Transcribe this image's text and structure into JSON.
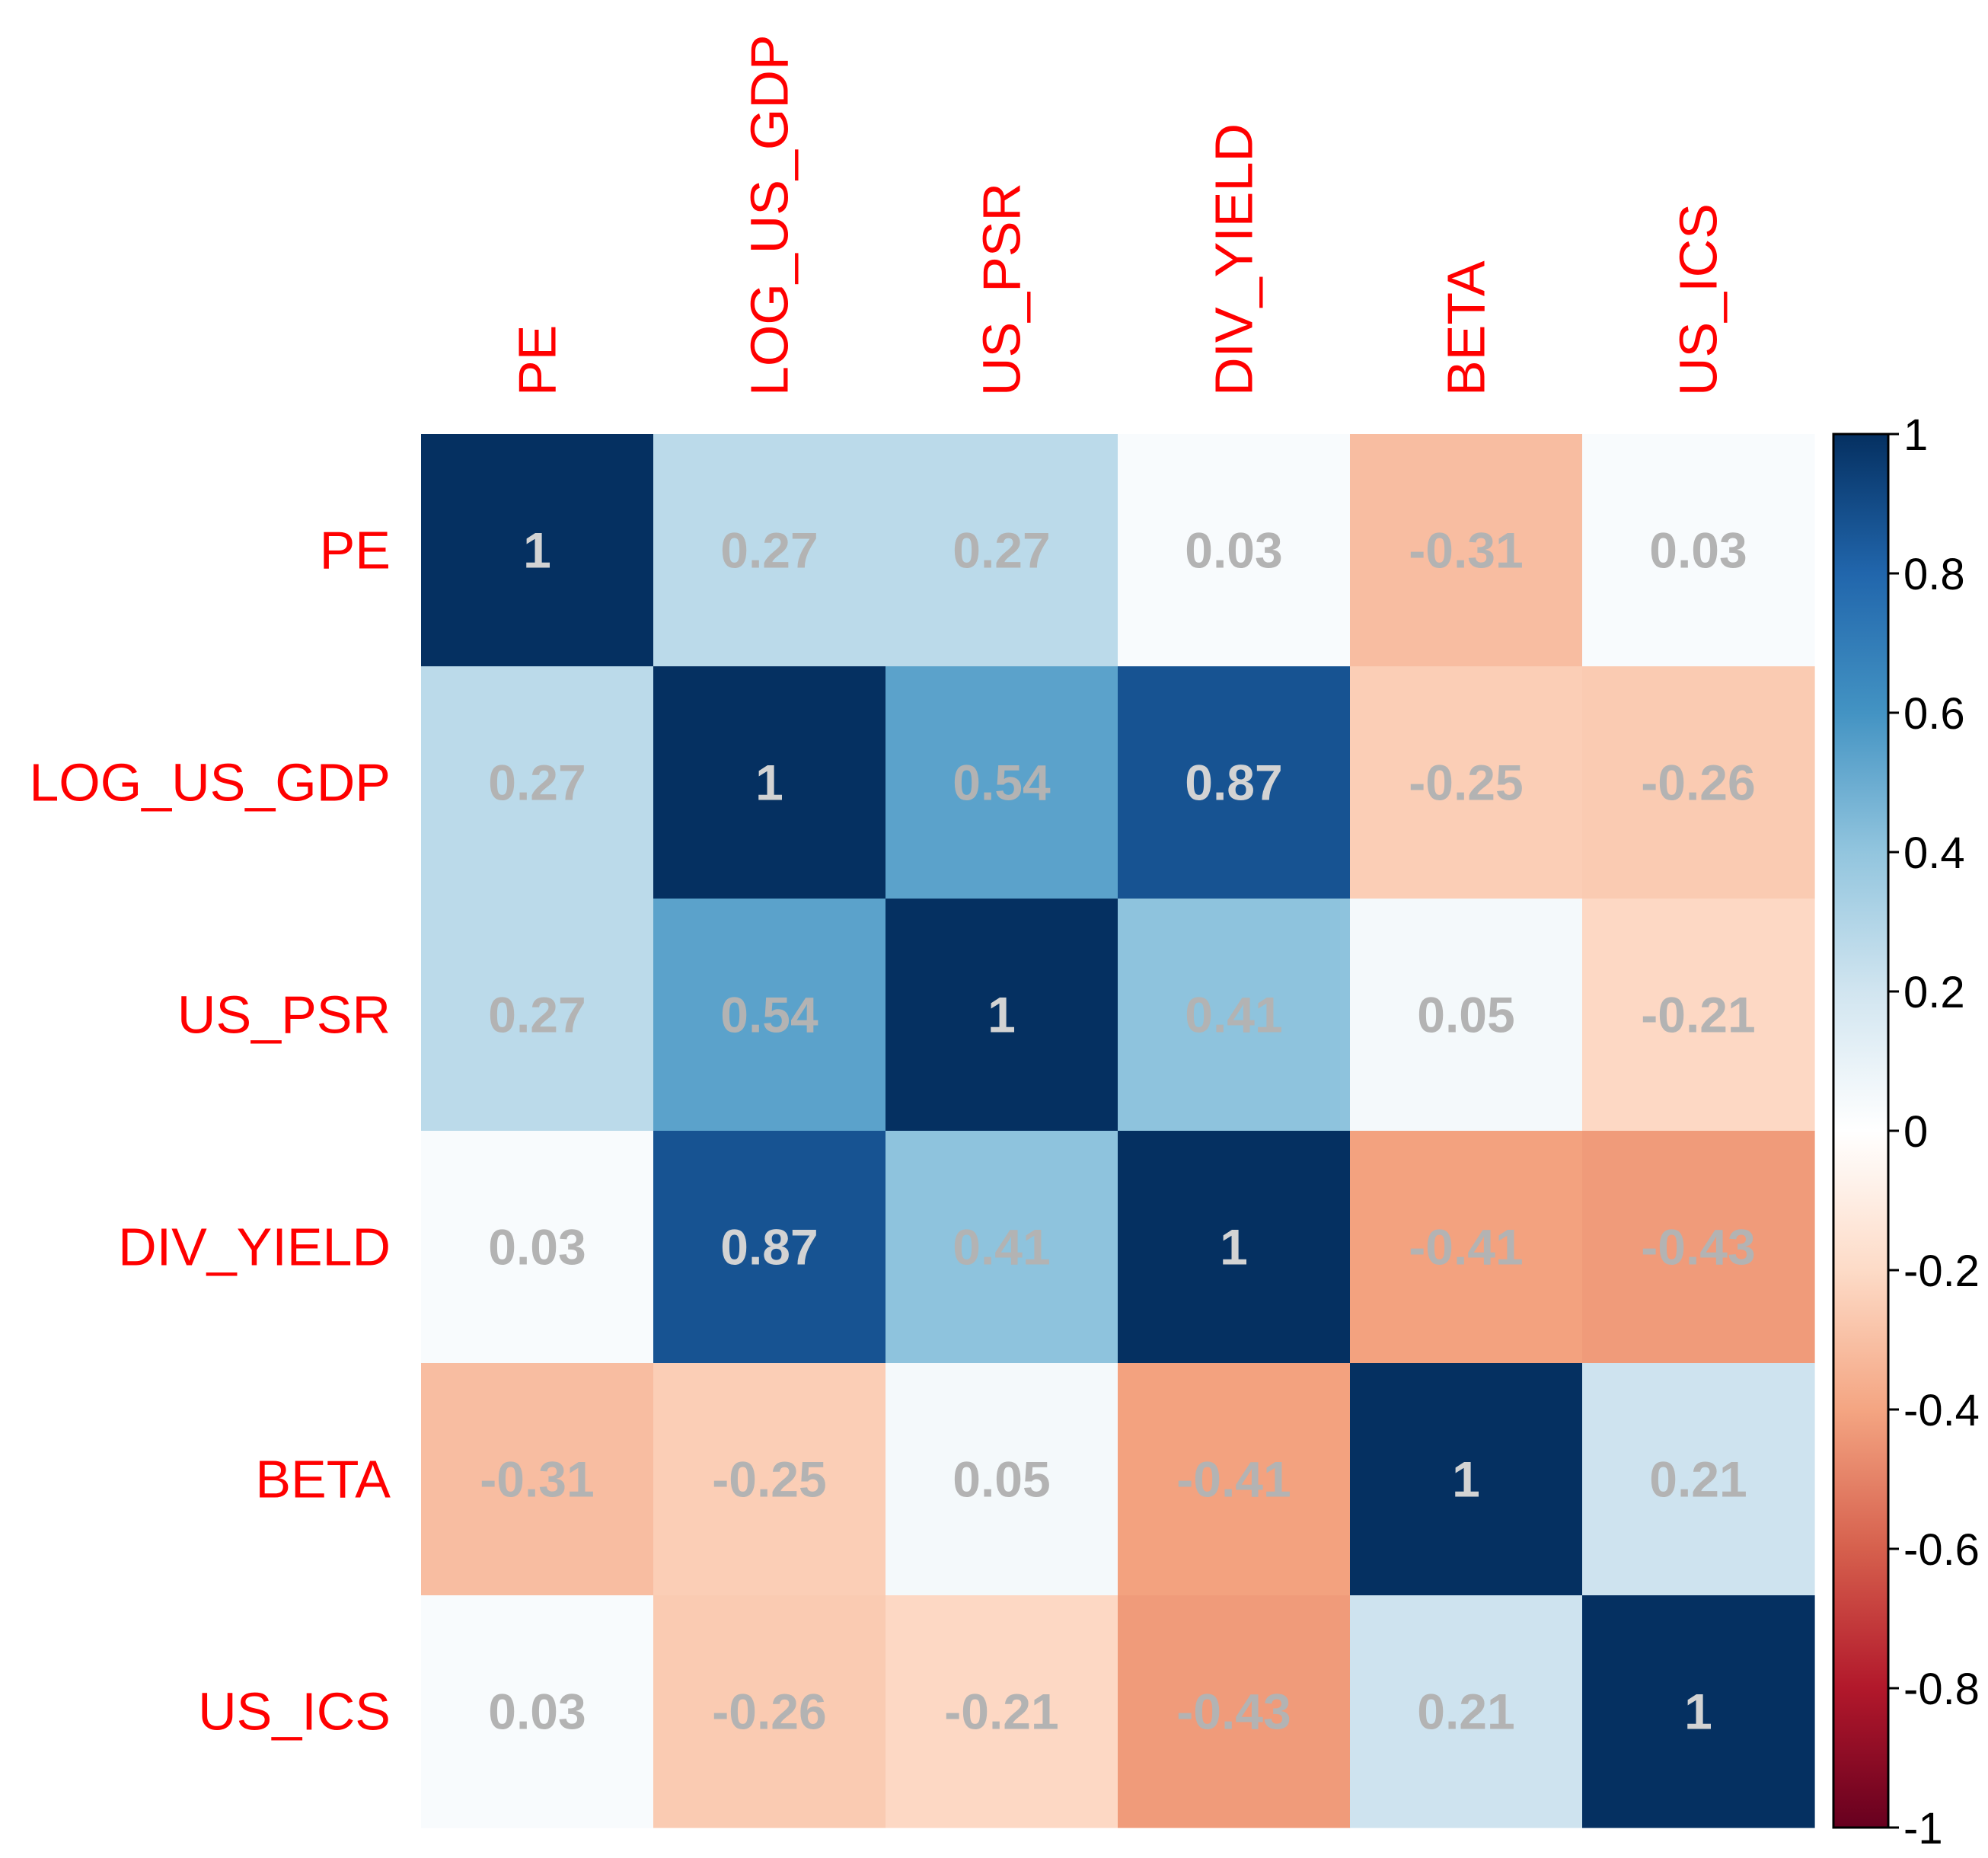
{
  "chart_data": {
    "type": "heatmap",
    "title": "",
    "variables": [
      "PE",
      "LOG_US_GDP",
      "US_PSR",
      "DIV_YIELD",
      "BETA",
      "US_ICS"
    ],
    "matrix": [
      [
        1,
        0.27,
        0.27,
        0.03,
        -0.31,
        0.03
      ],
      [
        0.27,
        1,
        0.54,
        0.87,
        -0.25,
        -0.26
      ],
      [
        0.27,
        0.54,
        1,
        0.41,
        0.05,
        -0.21
      ],
      [
        0.03,
        0.87,
        0.41,
        1,
        -0.41,
        -0.43
      ],
      [
        -0.31,
        -0.25,
        0.05,
        -0.41,
        1,
        0.21
      ],
      [
        0.03,
        -0.26,
        -0.21,
        -0.43,
        0.21,
        1
      ]
    ],
    "cell_labels": [
      [
        "1",
        "0.27",
        "0.27",
        "0.03",
        "-0.31",
        "0.03"
      ],
      [
        "0.27",
        "1",
        "0.54",
        "0.87",
        "-0.25",
        "-0.26"
      ],
      [
        "0.27",
        "0.54",
        "1",
        "0.41",
        "0.05",
        "-0.21"
      ],
      [
        "0.03",
        "0.87",
        "0.41",
        "1",
        "-0.41",
        "-0.43"
      ],
      [
        "-0.31",
        "-0.25",
        "0.05",
        "-0.41",
        "1",
        "0.21"
      ],
      [
        "0.03",
        "-0.26",
        "-0.21",
        "-0.43",
        "0.21",
        "1"
      ]
    ],
    "colorbar": {
      "range": [
        -1,
        1
      ],
      "ticks": [
        1,
        0.8,
        0.6,
        0.4,
        0.2,
        0,
        -0.2,
        -0.4,
        -0.6,
        -0.8,
        -1
      ],
      "tick_labels": [
        "1",
        "0.8",
        "0.6",
        "0.4",
        "0.2",
        "0",
        "-0.2",
        "-0.4",
        "-0.6",
        "-0.8",
        "-1"
      ]
    },
    "colors": {
      "label": "#ff0000",
      "cell_text_light": "#d3d3d3",
      "cell_text_muted": "#b3b3b3",
      "scale": [
        "#67001f",
        "#b2182b",
        "#d6604d",
        "#f4a582",
        "#fddbc7",
        "#ffffff",
        "#d1e5f0",
        "#92c5de",
        "#4393c3",
        "#2166ac",
        "#053061"
      ]
    }
  }
}
